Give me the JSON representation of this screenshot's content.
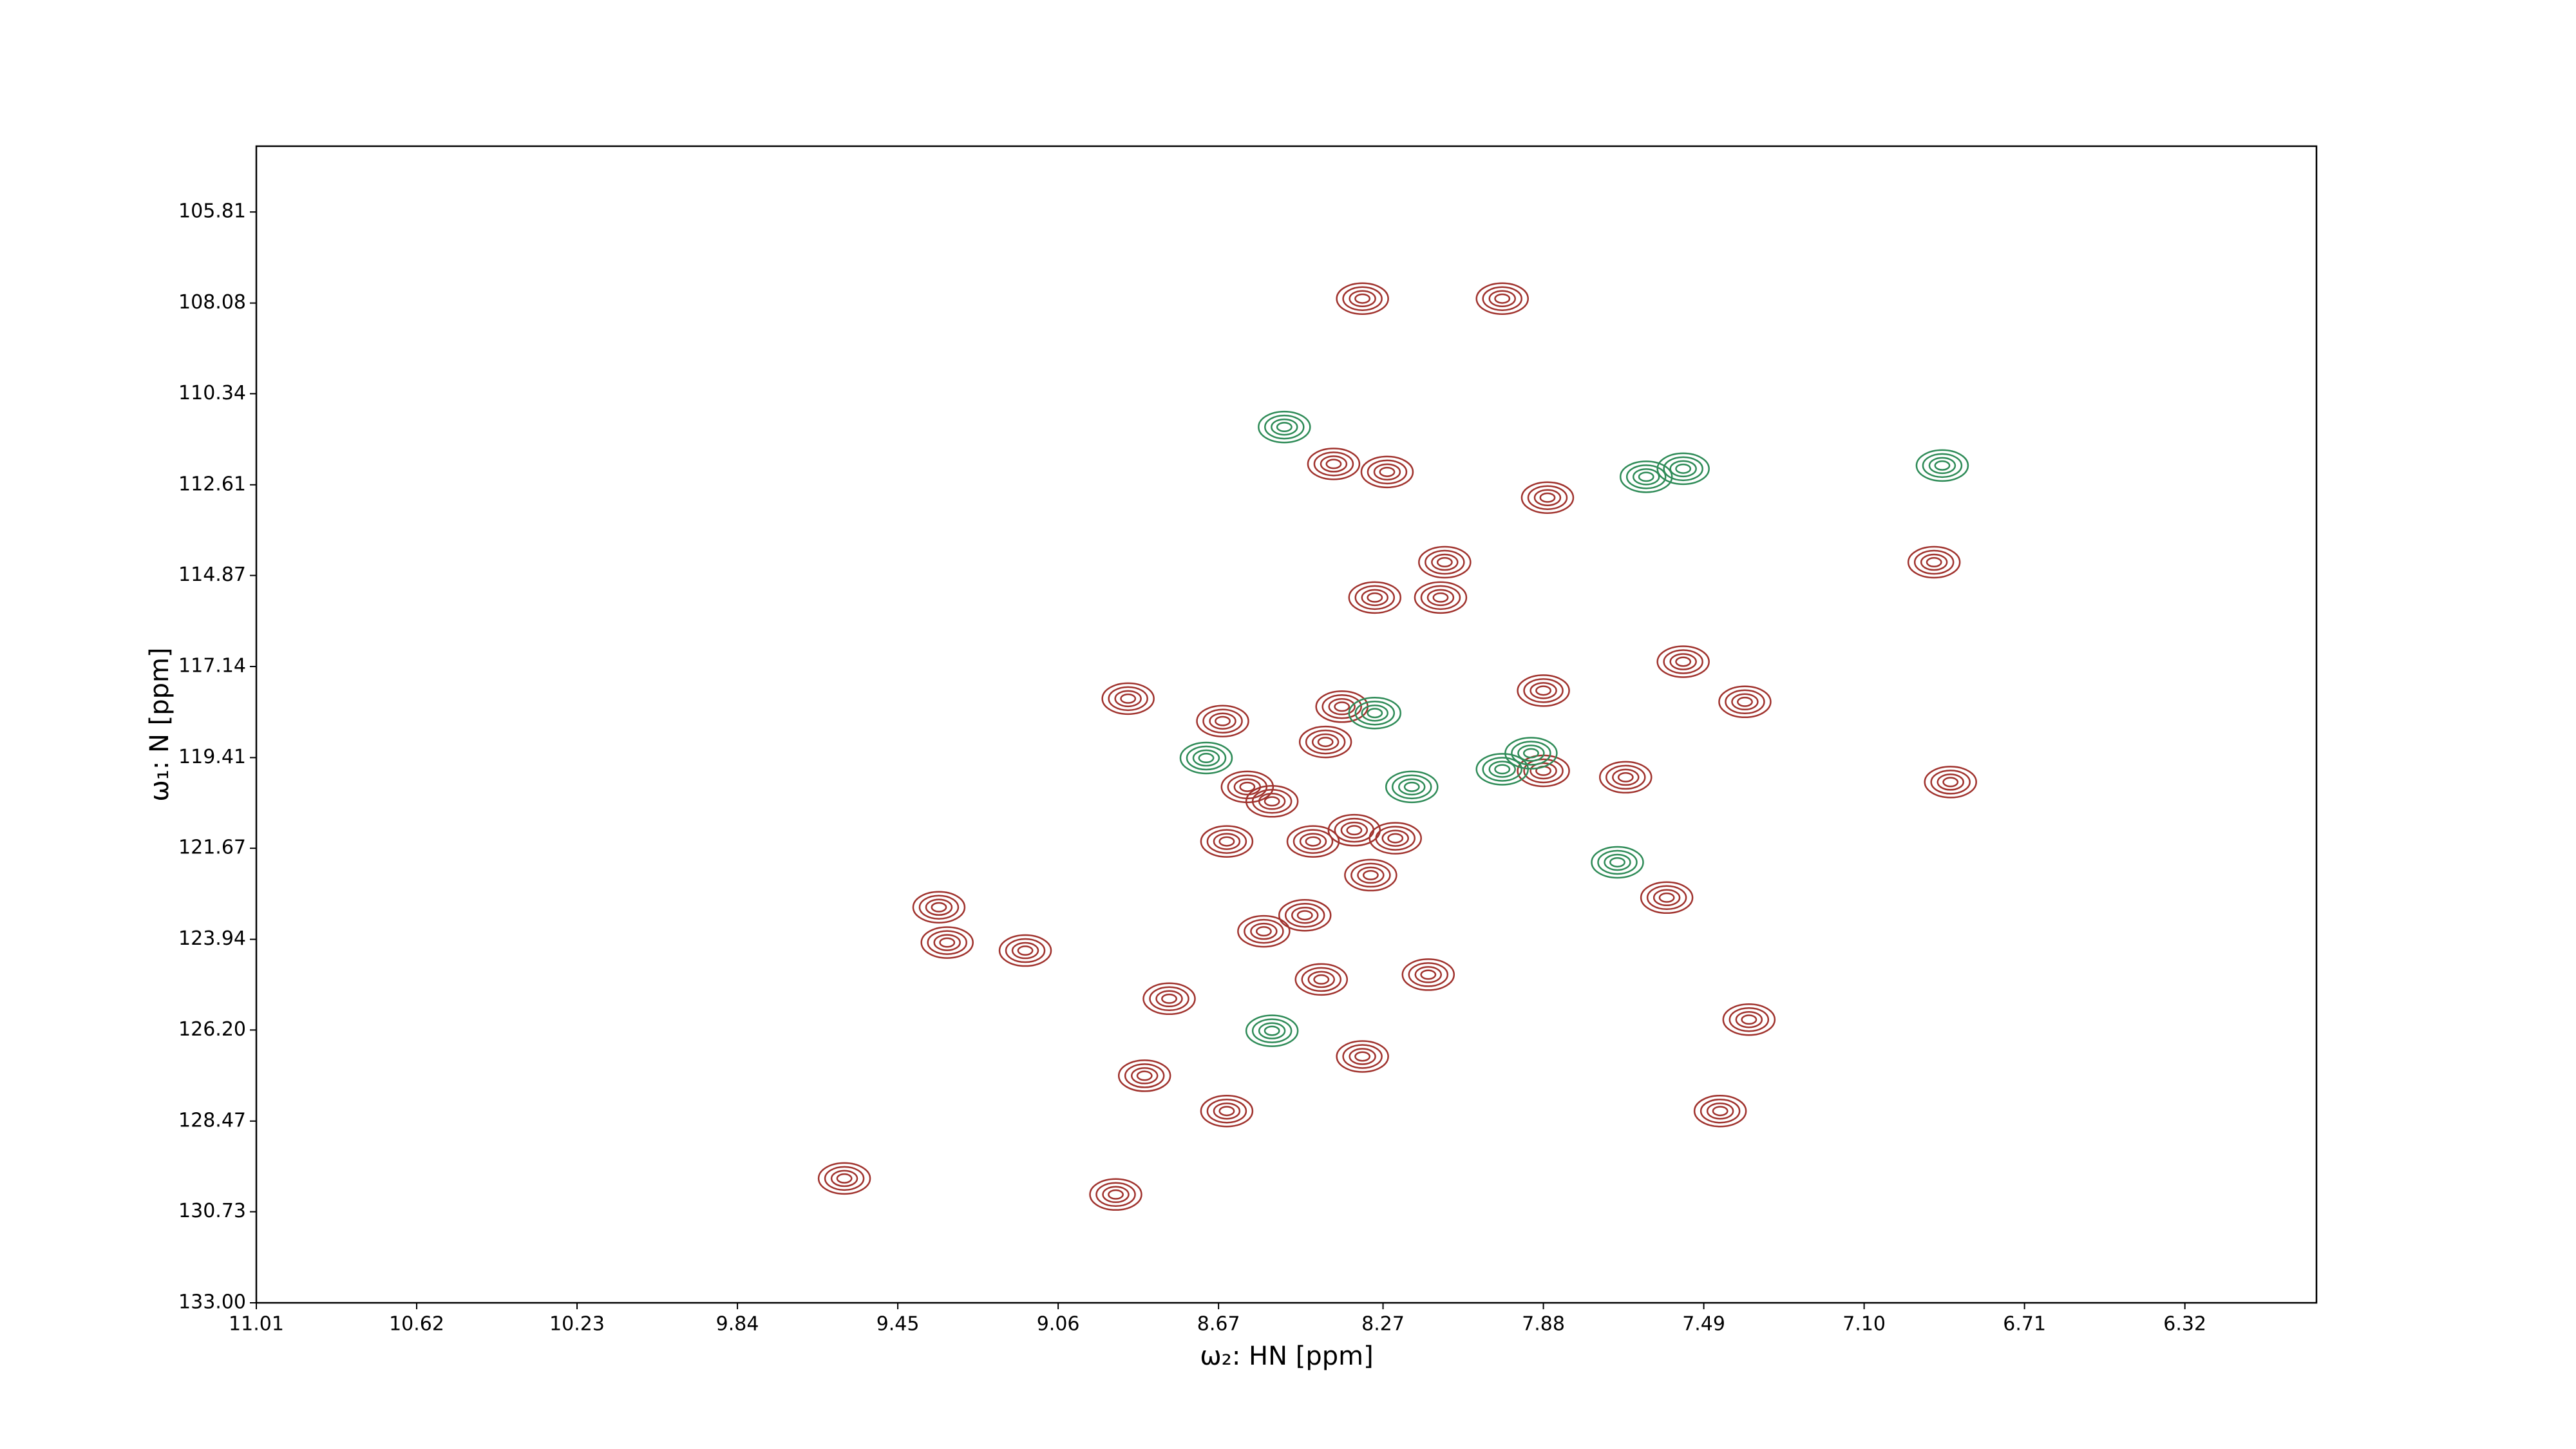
{
  "chart_data": {
    "type": "contour",
    "xlabel": "ω₂: HN [ppm]",
    "ylabel": "ω₁: N [ppm]",
    "xlim": [
      11.01,
      6.0
    ],
    "ylim": [
      133,
      104.17
    ],
    "xticks": [
      11.01,
      10.62,
      10.23,
      9.84,
      9.45,
      9.06,
      8.67,
      8.27,
      7.88,
      7.49,
      {
        "value": 7.1,
        "label": "7.10"
      },
      6.71,
      6.32
    ],
    "yticks": [
      {
        "value": 133,
        "label": "133.00"
      },
      130.73,
      128.47,
      {
        "value": 126.2,
        "label": "126.20"
      },
      123.94,
      121.67,
      119.41,
      117.14,
      114.87,
      112.61,
      110.34,
      108.08,
      105.81
    ],
    "series": [
      {
        "color": "#a0322d",
        "x": [
          8.32,
          7.98,
          8.39,
          8.26,
          7.87,
          8.12,
          8.29,
          8.13,
          7.54,
          8.89,
          8.37,
          8.41,
          8.66,
          8.6,
          8.54,
          8.44,
          8.34,
          8.24,
          8.3,
          8.65,
          7.58,
          9.35,
          9.33,
          9.14,
          8.56,
          8.46,
          8.42,
          8.16,
          8.79,
          8.85,
          8.65,
          8.92,
          9.58,
          7.39,
          6.93,
          6.89,
          7.88,
          7.68,
          7.38,
          7.45,
          7.88,
          8.32
        ],
        "y": [
          107.97,
          107.97,
          112.09,
          112.29,
          112.93,
          114.54,
          115.42,
          115.42,
          117.02,
          117.94,
          118.14,
          119.02,
          118.5,
          120.14,
          120.5,
          121.5,
          121.22,
          121.42,
          122.34,
          121.5,
          122.9,
          123.14,
          124.02,
          124.22,
          123.74,
          123.34,
          124.94,
          124.82,
          125.42,
          127.34,
          128.22,
          130.3,
          129.9,
          118.02,
          114.54,
          120.02,
          119.74,
          119.9,
          125.94,
          128.22,
          117.74,
          126.86
        ]
      },
      {
        "color": "#2e8b57",
        "x": [
          8.51,
          8.29,
          8.2,
          7.7,
          7.63,
          7.54,
          6.91,
          7.98,
          7.91,
          8.7,
          8.54
        ],
        "y": [
          111.17,
          118.3,
          120.14,
          122.02,
          112.41,
          112.21,
          112.13,
          119.7,
          119.3,
          119.42,
          126.22
        ]
      }
    ]
  }
}
